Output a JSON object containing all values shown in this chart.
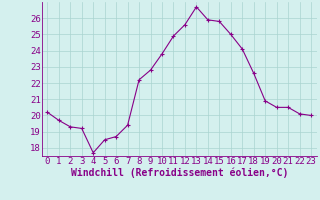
{
  "x": [
    0,
    1,
    2,
    3,
    4,
    5,
    6,
    7,
    8,
    9,
    10,
    11,
    12,
    13,
    14,
    15,
    16,
    17,
    18,
    19,
    20,
    21,
    22,
    23
  ],
  "y": [
    20.2,
    19.7,
    19.3,
    19.2,
    17.7,
    18.5,
    18.7,
    19.4,
    22.2,
    22.8,
    23.8,
    24.9,
    25.6,
    26.7,
    25.9,
    25.8,
    25.0,
    24.1,
    22.6,
    20.9,
    20.5,
    20.5,
    20.1,
    20.0
  ],
  "line_color": "#880088",
  "marker": "+",
  "marker_color": "#880088",
  "bg_color": "#d4f0ee",
  "grid_color": "#aad4d0",
  "tick_color": "#880088",
  "xlabel": "Windchill (Refroidissement éolien,°C)",
  "xlabel_color": "#880088",
  "xlim": [
    -0.5,
    23.5
  ],
  "ylim": [
    17.5,
    27.0
  ],
  "yticks": [
    18,
    19,
    20,
    21,
    22,
    23,
    24,
    25,
    26
  ],
  "xticks": [
    0,
    1,
    2,
    3,
    4,
    5,
    6,
    7,
    8,
    9,
    10,
    11,
    12,
    13,
    14,
    15,
    16,
    17,
    18,
    19,
    20,
    21,
    22,
    23
  ],
  "tick_fontsize": 6.5,
  "xlabel_fontsize": 7.0,
  "linewidth": 0.8,
  "markersize": 3.5
}
